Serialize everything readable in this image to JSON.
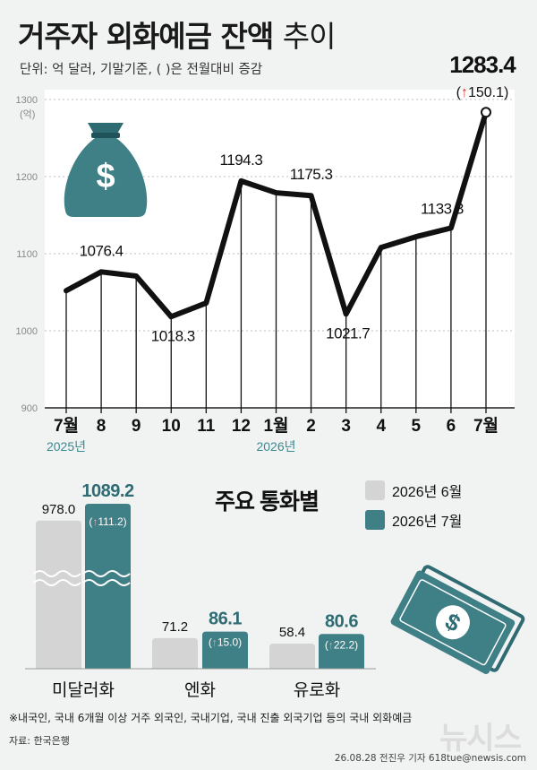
{
  "header": {
    "title_main": "거주자 외화예금 잔액",
    "title_suffix": "추이",
    "subtitle": "단위: 억 달러, 기말기준, ( )은 전월대비 증감"
  },
  "colors": {
    "background": "#f1f2f2",
    "plot_bg": "#ffffff",
    "line": "#111111",
    "teal": "#3f7f86",
    "teal_dark": "#2f6b72",
    "gray_bar": "#d4d4d4",
    "year_label": "#3a8a90",
    "up_arrow": "#d9262b"
  },
  "chart_data": [
    {
      "type": "line",
      "x": [
        "7월",
        "8",
        "9",
        "10",
        "11",
        "12",
        "1월",
        "2",
        "3",
        "4",
        "5",
        "6",
        "7월"
      ],
      "year_labels": [
        {
          "text": "2025년",
          "at": "7월"
        },
        {
          "text": "2026년",
          "at": "1월"
        }
      ],
      "series": [
        {
          "values": [
            1052,
            1076.4,
            1071,
            1018.3,
            1036,
            1194.3,
            1179,
            1175.3,
            1021.7,
            1108,
            1122,
            1133.3,
            1283.4
          ]
        }
      ],
      "data_labels": [
        {
          "index": 1,
          "text": "1076.4"
        },
        {
          "index": 3,
          "text": "1018.3"
        },
        {
          "index": 5,
          "text": "1194.3"
        },
        {
          "index": 7,
          "text": "1175.3"
        },
        {
          "index": 8,
          "text": "1021.7"
        },
        {
          "index": 11,
          "text": "1133.3"
        }
      ],
      "highlight": {
        "index": 12,
        "text": "1283.4",
        "change_arrow": "↑",
        "change": "150.1",
        "open": "(",
        "close": ")"
      },
      "yticks": [
        "900",
        "1000",
        "1100",
        "1200",
        "1300"
      ],
      "ytick_unit": "(억)",
      "ylim": [
        900,
        1300
      ],
      "grid": true,
      "icon": "money-bag-icon"
    },
    {
      "type": "bar",
      "title": "주요 통화별",
      "categories": [
        "미달러화",
        "엔화",
        "유로화"
      ],
      "series": [
        {
          "name": "2026년 6월",
          "values": [
            978.0,
            71.2,
            58.4
          ],
          "labels": [
            "978.0",
            "71.2",
            "58.4"
          ]
        },
        {
          "name": "2026년 7월",
          "values": [
            1089.2,
            86.1,
            80.6
          ],
          "labels": [
            "1089.2",
            "86.1",
            "80.6"
          ]
        }
      ],
      "changes": [
        "111.2",
        "15.0",
        "22.2"
      ],
      "change_arrow": "↑",
      "axis_break": true,
      "legend": "top-right",
      "icon": "banknote-icon"
    }
  ],
  "footer": {
    "footnote": "※내국인, 국내 6개월 이상 거주 외국인, 국내기업, 국내 진출 외국기업 등의 국내 외화예금",
    "source": "자료: 한국은행",
    "credit": "26.08.28 전진우 기자 618tue@newsis.com",
    "watermark": "뉴시스"
  }
}
